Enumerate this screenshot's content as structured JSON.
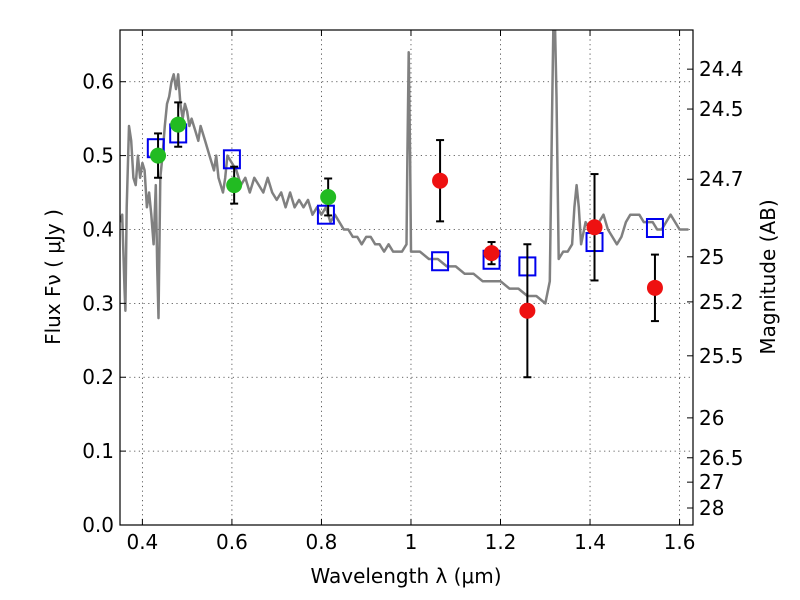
{
  "chart_data": {
    "type": "scatter",
    "title": "",
    "xlabel": "Wavelength  λ (μm)",
    "ylabel": "Flux  Fν  ( μJy )",
    "right_ylabel": "Magnitude (AB)",
    "xlim": [
      0.35,
      1.63
    ],
    "ylim": [
      0.0,
      0.67
    ],
    "grid": true,
    "x_ticks": [
      0.4,
      0.6,
      0.8,
      1.0,
      1.2,
      1.4,
      1.6
    ],
    "x_tick_labels": [
      "0.4",
      "0.6",
      "0.8",
      "1",
      "1.2",
      "1.4",
      "1.6"
    ],
    "y_ticks": [
      0.0,
      0.1,
      0.2,
      0.3,
      0.4,
      0.5,
      0.6
    ],
    "y_tick_labels": [
      "0.0",
      "0.1",
      "0.2",
      "0.3",
      "0.4",
      "0.5",
      "0.6"
    ],
    "right_ticks": [
      {
        "label": "24.4",
        "flux": 0.617
      },
      {
        "label": "24.5",
        "flux": 0.563
      },
      {
        "label": "24.7",
        "flux": 0.468
      },
      {
        "label": "25",
        "flux": 0.363
      },
      {
        "label": "25.2",
        "flux": 0.302
      },
      {
        "label": "25.5",
        "flux": 0.229
      },
      {
        "label": "26",
        "flux": 0.145
      },
      {
        "label": "26.5",
        "flux": 0.091
      },
      {
        "label": "27",
        "flux": 0.058
      },
      {
        "label": "28",
        "flux": 0.023
      }
    ],
    "colors": {
      "spectrum": "#808080",
      "green_points": "#22bb22",
      "red_points": "#ee1111",
      "model_squares": "#0000ee",
      "errorbars": "#000000"
    },
    "series": [
      {
        "kind": "line",
        "points": [
          [
            0.35,
            0.41
          ],
          [
            0.355,
            0.42
          ],
          [
            0.36,
            0.32
          ],
          [
            0.362,
            0.29
          ],
          [
            0.365,
            0.43
          ],
          [
            0.37,
            0.54
          ],
          [
            0.375,
            0.52
          ],
          [
            0.38,
            0.47
          ],
          [
            0.385,
            0.46
          ],
          [
            0.39,
            0.5
          ],
          [
            0.395,
            0.47
          ],
          [
            0.4,
            0.49
          ],
          [
            0.405,
            0.48
          ],
          [
            0.41,
            0.43
          ],
          [
            0.415,
            0.45
          ],
          [
            0.42,
            0.42
          ],
          [
            0.425,
            0.38
          ],
          [
            0.43,
            0.46
          ],
          [
            0.433,
            0.35
          ],
          [
            0.436,
            0.28
          ],
          [
            0.44,
            0.47
          ],
          [
            0.445,
            0.5
          ],
          [
            0.45,
            0.54
          ],
          [
            0.455,
            0.57
          ],
          [
            0.46,
            0.58
          ],
          [
            0.465,
            0.6
          ],
          [
            0.47,
            0.61
          ],
          [
            0.475,
            0.59
          ],
          [
            0.48,
            0.61
          ],
          [
            0.485,
            0.57
          ],
          [
            0.49,
            0.55
          ],
          [
            0.495,
            0.57
          ],
          [
            0.5,
            0.56
          ],
          [
            0.505,
            0.54
          ],
          [
            0.51,
            0.55
          ],
          [
            0.52,
            0.53
          ],
          [
            0.525,
            0.52
          ],
          [
            0.53,
            0.54
          ],
          [
            0.54,
            0.52
          ],
          [
            0.55,
            0.5
          ],
          [
            0.56,
            0.48
          ],
          [
            0.565,
            0.5
          ],
          [
            0.57,
            0.47
          ],
          [
            0.58,
            0.45
          ],
          [
            0.585,
            0.47
          ],
          [
            0.59,
            0.5
          ],
          [
            0.6,
            0.49
          ],
          [
            0.61,
            0.48
          ],
          [
            0.62,
            0.46
          ],
          [
            0.63,
            0.47
          ],
          [
            0.64,
            0.45
          ],
          [
            0.65,
            0.47
          ],
          [
            0.66,
            0.46
          ],
          [
            0.67,
            0.45
          ],
          [
            0.68,
            0.47
          ],
          [
            0.69,
            0.45
          ],
          [
            0.7,
            0.44
          ],
          [
            0.71,
            0.45
          ],
          [
            0.72,
            0.43
          ],
          [
            0.73,
            0.45
          ],
          [
            0.74,
            0.43
          ],
          [
            0.75,
            0.44
          ],
          [
            0.76,
            0.43
          ],
          [
            0.77,
            0.44
          ],
          [
            0.78,
            0.42
          ],
          [
            0.79,
            0.43
          ],
          [
            0.8,
            0.42
          ],
          [
            0.81,
            0.43
          ],
          [
            0.82,
            0.41
          ],
          [
            0.83,
            0.42
          ],
          [
            0.84,
            0.41
          ],
          [
            0.85,
            0.4
          ],
          [
            0.86,
            0.4
          ],
          [
            0.87,
            0.39
          ],
          [
            0.88,
            0.39
          ],
          [
            0.89,
            0.38
          ],
          [
            0.9,
            0.39
          ],
          [
            0.91,
            0.39
          ],
          [
            0.92,
            0.38
          ],
          [
            0.93,
            0.38
          ],
          [
            0.94,
            0.37
          ],
          [
            0.95,
            0.38
          ],
          [
            0.96,
            0.37
          ],
          [
            0.97,
            0.37
          ],
          [
            0.98,
            0.37
          ],
          [
            0.99,
            0.38
          ],
          [
            0.992,
            0.5
          ],
          [
            0.995,
            0.64
          ],
          [
            0.998,
            0.5
          ],
          [
            1.0,
            0.37
          ],
          [
            1.02,
            0.37
          ],
          [
            1.04,
            0.36
          ],
          [
            1.06,
            0.36
          ],
          [
            1.08,
            0.35
          ],
          [
            1.1,
            0.35
          ],
          [
            1.12,
            0.34
          ],
          [
            1.14,
            0.34
          ],
          [
            1.16,
            0.33
          ],
          [
            1.18,
            0.33
          ],
          [
            1.2,
            0.33
          ],
          [
            1.22,
            0.32
          ],
          [
            1.24,
            0.32
          ],
          [
            1.26,
            0.31
          ],
          [
            1.28,
            0.31
          ],
          [
            1.3,
            0.3
          ],
          [
            1.31,
            0.33
          ],
          [
            1.315,
            0.55
          ],
          [
            1.318,
            0.67
          ],
          [
            1.322,
            0.67
          ],
          [
            1.325,
            0.58
          ],
          [
            1.33,
            0.36
          ],
          [
            1.34,
            0.37
          ],
          [
            1.35,
            0.37
          ],
          [
            1.36,
            0.38
          ],
          [
            1.365,
            0.43
          ],
          [
            1.37,
            0.46
          ],
          [
            1.375,
            0.43
          ],
          [
            1.38,
            0.38
          ],
          [
            1.39,
            0.41
          ],
          [
            1.4,
            0.4
          ],
          [
            1.41,
            0.41
          ],
          [
            1.42,
            0.41
          ],
          [
            1.43,
            0.42
          ],
          [
            1.44,
            0.4
          ],
          [
            1.45,
            0.39
          ],
          [
            1.46,
            0.38
          ],
          [
            1.47,
            0.39
          ],
          [
            1.48,
            0.41
          ],
          [
            1.49,
            0.42
          ],
          [
            1.5,
            0.42
          ],
          [
            1.51,
            0.42
          ],
          [
            1.52,
            0.41
          ],
          [
            1.53,
            0.41
          ],
          [
            1.54,
            0.41
          ],
          [
            1.55,
            0.4
          ],
          [
            1.56,
            0.4
          ],
          [
            1.57,
            0.41
          ],
          [
            1.58,
            0.42
          ],
          [
            1.59,
            0.41
          ],
          [
            1.6,
            0.4
          ],
          [
            1.62,
            0.4
          ]
        ]
      },
      {
        "kind": "errorbar",
        "points": [
          {
            "x": 0.435,
            "y": 0.5,
            "err": 0.03
          },
          {
            "x": 0.48,
            "y": 0.542,
            "err": 0.03
          },
          {
            "x": 0.605,
            "y": 0.46,
            "err": 0.025
          },
          {
            "x": 0.815,
            "y": 0.444,
            "err": 0.025
          }
        ]
      },
      {
        "kind": "errorbar",
        "points": [
          {
            "x": 1.065,
            "y": 0.466,
            "err": 0.055
          },
          {
            "x": 1.18,
            "y": 0.368,
            "err": 0.015
          },
          {
            "x": 1.26,
            "y": 0.29,
            "err": 0.09
          },
          {
            "x": 1.41,
            "y": 0.403,
            "err": 0.072
          },
          {
            "x": 1.545,
            "y": 0.321,
            "err": 0.045
          }
        ]
      },
      {
        "kind": "squares",
        "points": [
          {
            "x": 0.43,
            "y": 0.51
          },
          {
            "x": 0.48,
            "y": 0.53
          },
          {
            "x": 0.6,
            "y": 0.495
          },
          {
            "x": 0.81,
            "y": 0.42
          },
          {
            "x": 1.065,
            "y": 0.357
          },
          {
            "x": 1.18,
            "y": 0.359
          },
          {
            "x": 1.26,
            "y": 0.35
          },
          {
            "x": 1.41,
            "y": 0.383
          },
          {
            "x": 1.545,
            "y": 0.402
          }
        ]
      }
    ]
  }
}
